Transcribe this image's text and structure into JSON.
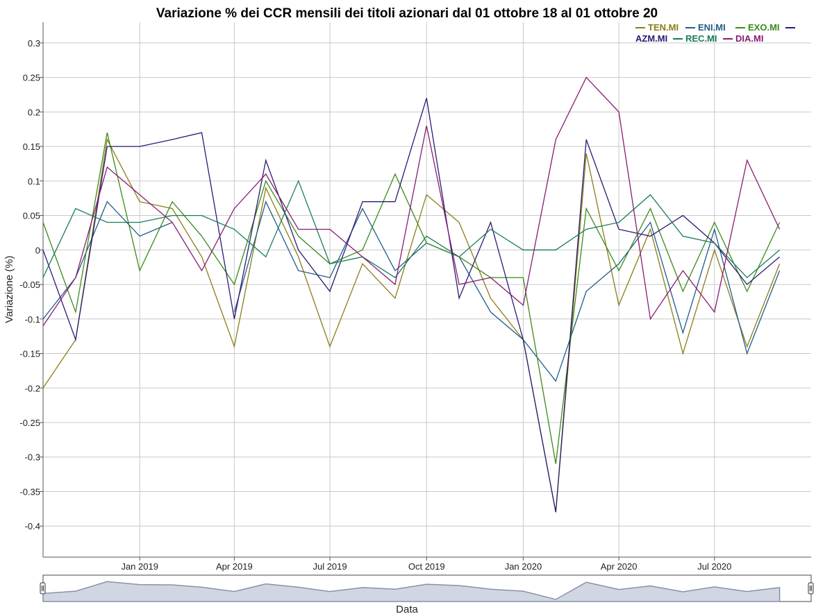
{
  "chart_data": {
    "type": "line",
    "title": "Variazione % dei CCR mensili dei titoli azionari dal 01 ottobre 18 al 01 ottobre 20",
    "xlabel": "Data",
    "ylabel": "Variazione (%)",
    "x": [
      "2018-10-01",
      "2018-11-01",
      "2018-12-01",
      "2019-01-01",
      "2019-02-01",
      "2019-03-01",
      "2019-04-01",
      "2019-05-01",
      "2019-06-01",
      "2019-07-01",
      "2019-08-01",
      "2019-09-01",
      "2019-10-01",
      "2019-11-01",
      "2019-12-01",
      "2020-01-01",
      "2020-02-01",
      "2020-03-01",
      "2020-04-01",
      "2020-05-01",
      "2020-06-01",
      "2020-07-01",
      "2020-08-01",
      "2020-09-01",
      "2020-10-01"
    ],
    "xlim": [
      "2018-10-01",
      "2020-10-01"
    ],
    "ylim": [
      -0.445,
      0.33
    ],
    "x_ticks": [
      {
        "date": "2019-01-01",
        "label": "Jan 2019"
      },
      {
        "date": "2019-04-01",
        "label": "Apr 2019"
      },
      {
        "date": "2019-07-01",
        "label": "Jul 2019"
      },
      {
        "date": "2019-10-01",
        "label": "Oct 2019"
      },
      {
        "date": "2020-01-01",
        "label": "Jan 2020"
      },
      {
        "date": "2020-04-01",
        "label": "Apr 2020"
      },
      {
        "date": "2020-07-01",
        "label": "Jul 2020"
      }
    ],
    "y_ticks": [
      {
        "value": 0.3,
        "label": "0.3"
      },
      {
        "value": 0.25,
        "label": "0.25"
      },
      {
        "value": 0.2,
        "label": "0.2"
      },
      {
        "value": 0.15,
        "label": "0.15"
      },
      {
        "value": 0.1,
        "label": "0.1"
      },
      {
        "value": 0.05,
        "label": "0.05"
      },
      {
        "value": 0,
        "label": "0"
      },
      {
        "value": -0.05,
        "label": "-0.05"
      },
      {
        "value": -0.1,
        "label": "-0.1"
      },
      {
        "value": -0.15,
        "label": "-0.15"
      },
      {
        "value": -0.2,
        "label": "-0.2"
      },
      {
        "value": -0.25,
        "label": "-0.25"
      },
      {
        "value": -0.3,
        "label": "-0.3"
      },
      {
        "value": -0.35,
        "label": "-0.35"
      },
      {
        "value": -0.4,
        "label": "-0.4"
      }
    ],
    "grid": true,
    "legend_position": "top-right",
    "range_selector": true,
    "series": [
      {
        "name": "TEN.MI",
        "color": "#8b7c16",
        "values": [
          -0.2,
          -0.13,
          0.16,
          0.07,
          0.06,
          -0.01,
          -0.14,
          0.09,
          -0.01,
          -0.14,
          -0.02,
          -0.07,
          0.08,
          0.04,
          -0.07,
          -0.13,
          -0.38,
          0.14,
          -0.08,
          0.03,
          -0.15,
          0.0,
          -0.14,
          -0.02,
          null
        ]
      },
      {
        "name": "ENI.MI",
        "color": "#205c8a",
        "values": [
          -0.1,
          -0.04,
          0.07,
          0.02,
          0.04,
          null,
          -0.09,
          0.07,
          -0.03,
          -0.04,
          0.06,
          -0.03,
          0.01,
          -0.01,
          -0.09,
          -0.13,
          -0.19,
          -0.06,
          -0.02,
          0.04,
          -0.12,
          0.03,
          -0.15,
          -0.03,
          null
        ]
      },
      {
        "name": "EXO.MI",
        "color": "#3a8a1a",
        "values": [
          0.04,
          -0.09,
          0.17,
          -0.03,
          0.07,
          0.02,
          -0.05,
          0.1,
          0.02,
          -0.02,
          0.0,
          0.11,
          0.01,
          -0.01,
          -0.04,
          -0.04,
          -0.31,
          0.06,
          -0.03,
          0.06,
          -0.06,
          0.04,
          -0.06,
          0.04,
          null
        ]
      },
      {
        "name": "AZM.MI",
        "color": "#2a1a72",
        "values": [
          0.0,
          -0.13,
          0.15,
          0.15,
          0.16,
          0.17,
          -0.1,
          0.13,
          0.0,
          -0.06,
          0.07,
          0.07,
          0.22,
          -0.07,
          0.04,
          -0.13,
          -0.38,
          0.16,
          0.03,
          0.02,
          0.05,
          0.01,
          -0.05,
          -0.01,
          null
        ]
      },
      {
        "name": "REC.MI",
        "color": "#1a7a5a",
        "values": [
          -0.04,
          0.06,
          0.04,
          0.04,
          0.05,
          0.05,
          0.03,
          -0.01,
          0.1,
          -0.02,
          -0.01,
          -0.04,
          0.02,
          -0.01,
          0.03,
          0.0,
          0.0,
          0.03,
          0.04,
          0.08,
          0.02,
          0.01,
          -0.04,
          0.0,
          null
        ]
      },
      {
        "name": "DIA.MI",
        "color": "#8a1a72",
        "values": [
          -0.11,
          -0.04,
          0.12,
          0.08,
          0.04,
          -0.03,
          0.06,
          0.11,
          0.03,
          0.03,
          -0.01,
          -0.05,
          0.18,
          -0.05,
          -0.04,
          -0.08,
          0.16,
          0.25,
          0.2,
          -0.1,
          -0.03,
          -0.09,
          0.13,
          0.03,
          null
        ]
      }
    ]
  }
}
